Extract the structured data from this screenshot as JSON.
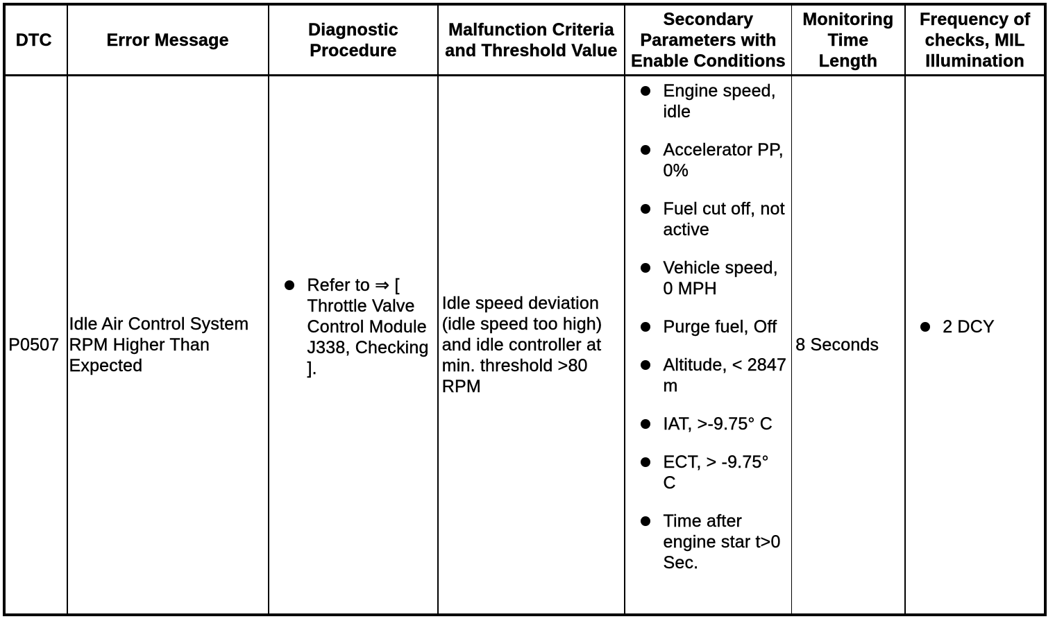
{
  "table": {
    "colors": {
      "ink": "#000000",
      "paper": "#ffffff"
    },
    "columns": [
      {
        "key": "dtc",
        "label": "DTC"
      },
      {
        "key": "error_message",
        "label": "Error Message"
      },
      {
        "key": "diagnostic_procedure",
        "label": "Diagnostic\nProcedure"
      },
      {
        "key": "malfunction_criteria",
        "label": "Malfunction Criteria\nand Threshold Value"
      },
      {
        "key": "secondary_parameters",
        "label": "Secondary\nParameters with\nEnable Conditions"
      },
      {
        "key": "monitoring_time",
        "label": "Monitoring\nTime\nLength"
      },
      {
        "key": "frequency_of_checks",
        "label": "Frequency of\nchecks, MIL\nIllumination"
      }
    ],
    "row": {
      "dtc": "P0507",
      "error_message": "Idle Air Control System\nRPM Higher Than\nExpected",
      "diagnostic_procedure_items": [
        "Refer to ⇒ [\nThrottle Valve\nControl Module\nJ338, Checking\n]."
      ],
      "malfunction_criteria": "Idle speed deviation\n(idle speed too high)\nand idle controller at\nmin. threshold >80\nRPM",
      "secondary_parameters_items": [
        "Engine speed,\nidle",
        "Accelerator PP,\n0%",
        "Fuel cut off, not\nactive",
        "Vehicle speed,\n0 MPH",
        "Purge fuel, Off",
        "Altitude, < 2847\nm",
        "IAT, >-9.75° C",
        "ECT, > -9.75°\nC",
        "Time after\nengine star t>0\nSec."
      ],
      "monitoring_time": "8 Seconds",
      "frequency_of_checks_items": [
        "2 DCY"
      ]
    }
  }
}
